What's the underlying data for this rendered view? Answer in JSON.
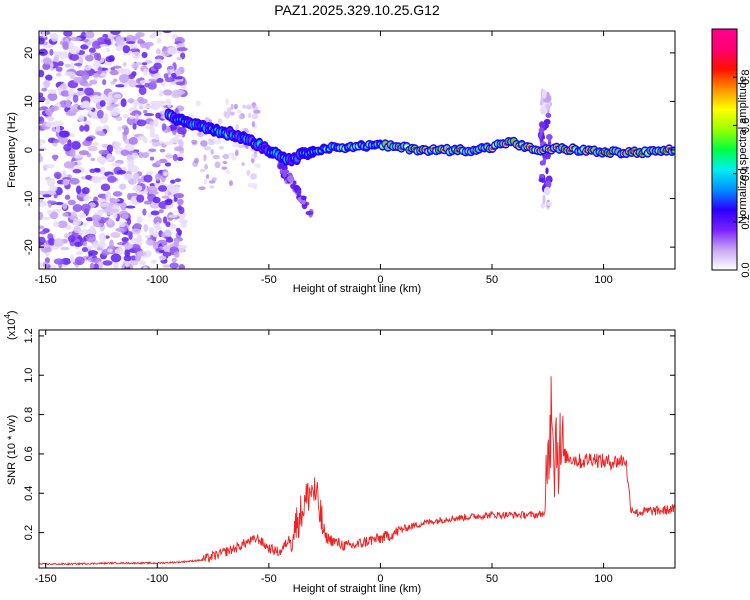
{
  "chart_data": [
    {
      "type": "heatmap",
      "title": "PAZ1.2025.329.10.25.G12",
      "xlabel": "Height of straight line (km)",
      "ylabel": "Frequency (Hz)",
      "xlim": [
        -153,
        132
      ],
      "ylim": [
        -24.5,
        24.5
      ],
      "xticks": [
        -150,
        -100,
        -50,
        0,
        50,
        100
      ],
      "yticks": [
        -20,
        -10,
        0,
        10,
        20
      ],
      "colorbar": {
        "label": "Normalized spectral amplitude",
        "range": [
          0,
          1
        ],
        "ticks": [
          0.0,
          0.2,
          0.4,
          0.6,
          0.8
        ],
        "colors": [
          "#ffffff",
          "#c9a8f5",
          "#7a1fff",
          "#2a00ff",
          "#0090ff",
          "#00f0f0",
          "#00ff40",
          "#9cff00",
          "#ffff00",
          "#ff9000",
          "#ff1000",
          "#ff0070",
          "#ff0090"
        ]
      },
      "ridge": {
        "x": [
          -95,
          -88,
          -80,
          -72,
          -65,
          -58,
          -52,
          -46,
          -40,
          -35,
          -30,
          -25,
          -20,
          -10,
          0,
          10,
          20,
          30,
          40,
          50,
          55,
          60,
          65,
          70,
          75,
          80,
          90,
          100,
          110,
          120,
          132
        ],
        "y": [
          7,
          6,
          5,
          4,
          3,
          2,
          0.5,
          -1,
          -2,
          -1,
          0,
          0.3,
          0.5,
          0.8,
          1,
          0.5,
          0,
          0,
          0,
          0.5,
          1.5,
          1.5,
          0.5,
          0,
          0,
          0.3,
          0,
          -0.5,
          -0.5,
          -0.5,
          0
        ]
      }
    },
    {
      "type": "line",
      "xlabel": "Height of straight line (km)",
      "ylabel": "SNR (10 * v/v)",
      "multiplier": "(x10",
      "multiplier_exponent": "4",
      "xlim": [
        -153,
        132
      ],
      "ylim": [
        0.02,
        1.23
      ],
      "xticks": [
        -150,
        -100,
        -50,
        0,
        50,
        100
      ],
      "yticks": [
        0.2,
        0.4,
        0.6,
        0.8,
        1.0,
        1.2
      ],
      "series": [
        {
          "name": "SNR",
          "color": "#ee2222",
          "x": [
            -153,
            -140,
            -120,
            -100,
            -90,
            -85,
            -80,
            -75,
            -70,
            -65,
            -60,
            -55,
            -50,
            -45,
            -40,
            -35,
            -32,
            -30,
            -28,
            -25,
            -20,
            -15,
            -10,
            -5,
            0,
            5,
            10,
            20,
            30,
            40,
            50,
            60,
            70,
            74,
            76,
            77,
            78,
            79,
            80,
            85,
            90,
            95,
            100,
            105,
            110,
            112,
            115,
            120,
            125,
            132
          ],
          "y": [
            0.04,
            0.04,
            0.045,
            0.045,
            0.05,
            0.055,
            0.06,
            0.08,
            0.1,
            0.12,
            0.15,
            0.17,
            0.12,
            0.1,
            0.18,
            0.32,
            0.4,
            0.42,
            0.35,
            0.18,
            0.15,
            0.13,
            0.14,
            0.16,
            0.17,
            0.19,
            0.22,
            0.25,
            0.27,
            0.28,
            0.29,
            0.29,
            0.29,
            0.3,
            0.7,
            0.95,
            0.6,
            0.7,
            0.6,
            0.58,
            0.56,
            0.58,
            0.56,
            0.56,
            0.57,
            0.33,
            0.3,
            0.31,
            0.31,
            0.32
          ]
        }
      ]
    }
  ]
}
